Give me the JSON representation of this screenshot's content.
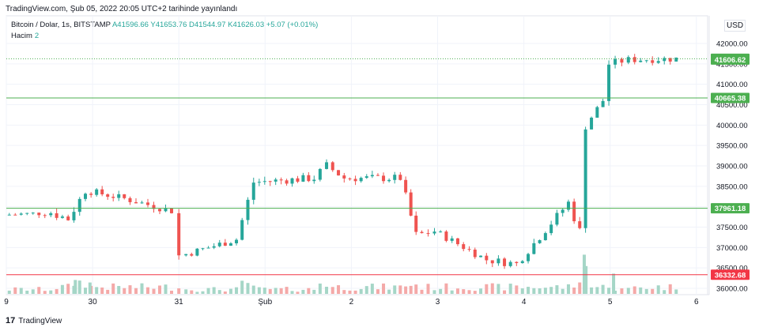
{
  "header": {
    "published": "TradingView.com, Şub 05, 2022 20:05 UTC+2 tarihinde yayınlandı"
  },
  "legend": {
    "symbol": "Bitcoin / Dolar, 1s, BITSTAMP",
    "open": "A41596.66",
    "high": "Y41653.76",
    "low": "D41544.97",
    "close": "K41626.03",
    "change": "+5.07 (+0.01%)",
    "volume_label": "Hacim",
    "volume_value": "2"
  },
  "axis": {
    "currency": "USD"
  },
  "footer": {
    "brand": "TradingView",
    "logo_mark": "17"
  },
  "colors": {
    "up": "#26a69a",
    "down": "#ef5350",
    "up_vol": "#a5d6c7",
    "down_vol": "#f4a9a8",
    "level_green": "#4caf50",
    "level_red": "#f23645",
    "grid": "#f0f3fa"
  },
  "chart_data": {
    "type": "candlestick",
    "ylim": [
      35700,
      42300
    ],
    "y_ticks": [
      36000,
      36500,
      37000,
      37500,
      38000,
      38500,
      39000,
      39500,
      40000,
      40500,
      41000,
      41500,
      42000
    ],
    "y_tick_labels": [
      "36000.00",
      "36500.00",
      "37000.00",
      "37500.00",
      "38000.00",
      "38500.00",
      "39000.00",
      "39500.00",
      "40000.00",
      "40500.00",
      "41000.00",
      "41500.00",
      "42000.00"
    ],
    "x_ticks": [
      {
        "label": "9",
        "day": 0
      },
      {
        "label": "30",
        "day": 1
      },
      {
        "label": "31",
        "day": 2
      },
      {
        "label": "Şub",
        "day": 3
      },
      {
        "label": "2",
        "day": 4
      },
      {
        "label": "3",
        "day": 5
      },
      {
        "label": "4",
        "day": 6
      },
      {
        "label": "5",
        "day": 7
      },
      {
        "label": "6",
        "day": 8
      }
    ],
    "x_range_days": [
      0,
      8.1
    ],
    "levels": [
      {
        "value": 41626.03,
        "label": "41626.03",
        "color": "#4caf50",
        "style": "dotted"
      },
      {
        "value": 41606.62,
        "label": "41606.62",
        "color": "#4caf50",
        "style": "none"
      },
      {
        "value": 40665.38,
        "label": "40665.38",
        "color": "#4caf50",
        "style": "solid"
      },
      {
        "value": 37961.18,
        "label": "37961.18",
        "color": "#4caf50",
        "style": "solid"
      },
      {
        "value": 36332.68,
        "label": "36332.68",
        "color": "#f23645",
        "style": "solid"
      }
    ],
    "segments": [
      {
        "d0": 0.0,
        "d1": 0.55,
        "p0": 37800,
        "p1": 37850,
        "noise": 150,
        "vol": 2
      },
      {
        "d0": 0.55,
        "d1": 0.75,
        "p0": 37850,
        "p1": 37700,
        "noise": 250,
        "vol": 3
      },
      {
        "d0": 0.75,
        "d1": 0.95,
        "p0": 37700,
        "p1": 38400,
        "noise": 250,
        "vol": 5
      },
      {
        "d0": 0.95,
        "d1": 1.4,
        "p0": 38400,
        "p1": 38200,
        "noise": 200,
        "vol": 3
      },
      {
        "d0": 1.4,
        "d1": 1.95,
        "p0": 38200,
        "p1": 37900,
        "noise": 200,
        "vol": 3
      },
      {
        "d0": 1.95,
        "d1": 2.05,
        "p0": 37900,
        "p1": 36800,
        "noise": 250,
        "vol": 4
      },
      {
        "d0": 2.05,
        "d1": 2.7,
        "p0": 36800,
        "p1": 37200,
        "noise": 200,
        "vol": 2
      },
      {
        "d0": 2.7,
        "d1": 2.9,
        "p0": 37200,
        "p1": 38600,
        "noise": 250,
        "vol": 4
      },
      {
        "d0": 2.9,
        "d1": 3.6,
        "p0": 38600,
        "p1": 38700,
        "noise": 220,
        "vol": 2
      },
      {
        "d0": 3.6,
        "d1": 3.75,
        "p0": 38700,
        "p1": 39000,
        "noise": 250,
        "vol": 5
      },
      {
        "d0": 3.75,
        "d1": 3.95,
        "p0": 39000,
        "p1": 38700,
        "noise": 220,
        "vol": 3
      },
      {
        "d0": 3.95,
        "d1": 4.6,
        "p0": 38700,
        "p1": 38700,
        "noise": 220,
        "vol": 3
      },
      {
        "d0": 4.6,
        "d1": 4.78,
        "p0": 38700,
        "p1": 37300,
        "noise": 280,
        "vol": 4
      },
      {
        "d0": 4.78,
        "d1": 5.0,
        "p0": 37300,
        "p1": 37400,
        "noise": 200,
        "vol": 3
      },
      {
        "d0": 5.0,
        "d1": 5.6,
        "p0": 37400,
        "p1": 36700,
        "noise": 200,
        "vol": 3
      },
      {
        "d0": 5.6,
        "d1": 5.95,
        "p0": 36700,
        "p1": 36600,
        "noise": 220,
        "vol": 3
      },
      {
        "d0": 5.95,
        "d1": 6.55,
        "p0": 36600,
        "p1": 38100,
        "noise": 230,
        "vol": 3
      },
      {
        "d0": 6.55,
        "d1": 6.68,
        "p0": 38100,
        "p1": 37400,
        "noise": 300,
        "vol": 4
      },
      {
        "d0": 6.68,
        "d1": 6.75,
        "p0": 37400,
        "p1": 40000,
        "noise": 300,
        "vol": 9
      },
      {
        "d0": 6.75,
        "d1": 6.95,
        "p0": 40000,
        "p1": 40600,
        "noise": 200,
        "vol": 3
      },
      {
        "d0": 6.95,
        "d1": 7.02,
        "p0": 40600,
        "p1": 41500,
        "noise": 300,
        "vol": 5
      },
      {
        "d0": 7.02,
        "d1": 7.25,
        "p0": 41500,
        "p1": 41600,
        "noise": 200,
        "vol": 2
      },
      {
        "d0": 7.25,
        "d1": 7.8,
        "p0": 41600,
        "p1": 41626,
        "noise": 200,
        "vol": 3
      }
    ],
    "volume_spikes": [
      {
        "day": 6.7,
        "height": 0.62
      },
      {
        "day": 6.72,
        "height": 0.44
      },
      {
        "day": 7.04,
        "height": 0.32
      },
      {
        "day": 0.8,
        "height": 0.22
      },
      {
        "day": 0.97,
        "height": 0.18
      }
    ]
  }
}
